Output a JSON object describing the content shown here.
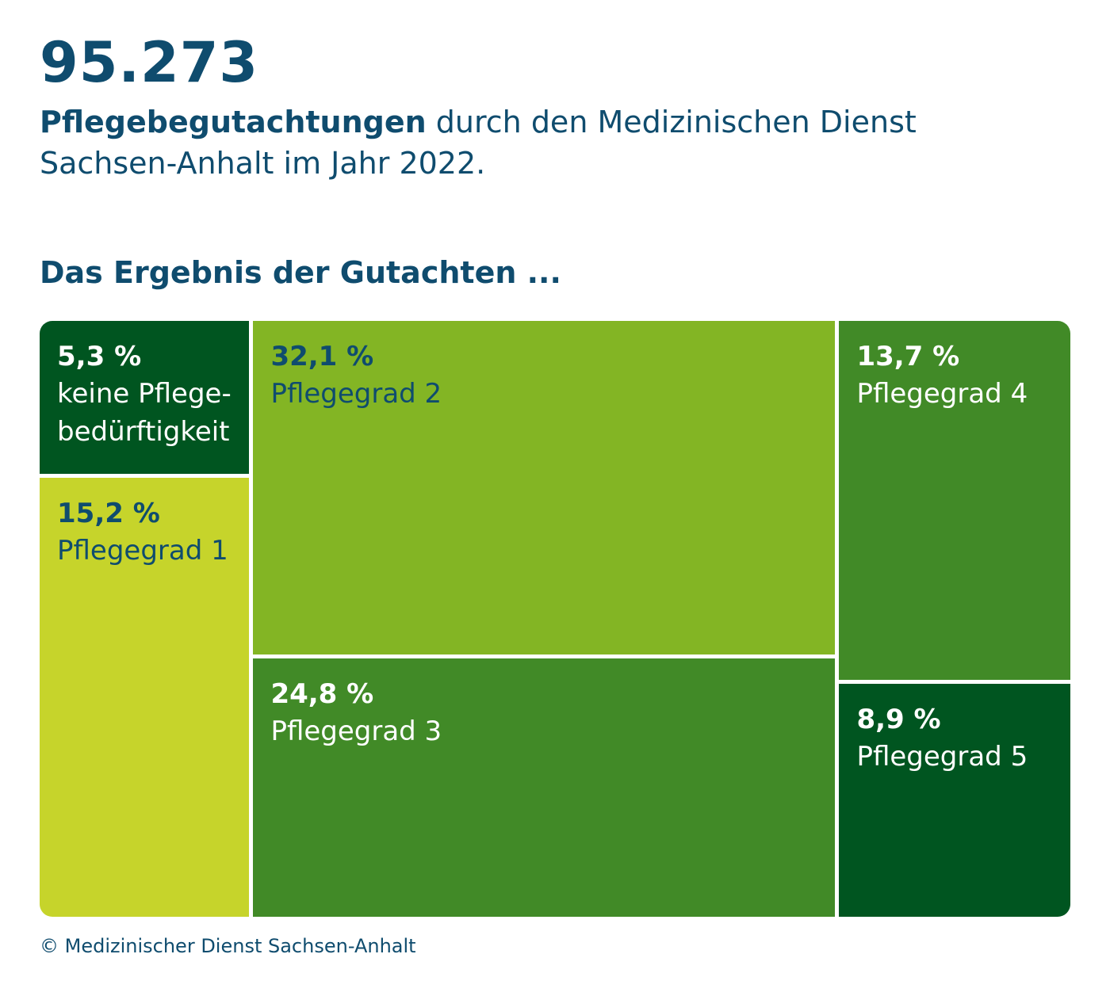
{
  "header": {
    "total": "95.273",
    "subtitle_bold": "Pflegebegutachtungen",
    "subtitle_rest": " durch den Medizinischen Dienst Sachsen-Anhalt im Jahr 2022."
  },
  "section_title": "Das Ergebnis der Gutachten ...",
  "credit": "© Medizinischer Dienst Sachsen-Anhalt",
  "colors": {
    "text": "#0f4c6e",
    "darkest_green": "#005520",
    "medium_green": "#418a27",
    "lime_green": "#83b524",
    "yellow_green": "#c6d42b"
  },
  "chart_data": {
    "type": "treemap",
    "title": "Das Ergebnis der Gutachten ...",
    "categories": [
      "keine Pflegebedürftigkeit",
      "Pflegegrad 1",
      "Pflegegrad 2",
      "Pflegegrad 3",
      "Pflegegrad 4",
      "Pflegegrad 5"
    ],
    "values": [
      5.3,
      15.2,
      32.1,
      24.8,
      13.7,
      8.9
    ],
    "unit": "%",
    "tiles": [
      {
        "pct": "5,3 %",
        "label": "keine Pflege-bedürftigkeit",
        "value": 5.3,
        "color": "#005520"
      },
      {
        "pct": "15,2 %",
        "label": "Pflegegrad 1",
        "value": 15.2,
        "color": "#c6d42b"
      },
      {
        "pct": "32,1 %",
        "label": "Pflegegrad 2",
        "value": 32.1,
        "color": "#83b524"
      },
      {
        "pct": "24,8 %",
        "label": "Pflegegrad 3",
        "value": 24.8,
        "color": "#418a27"
      },
      {
        "pct": "13,7 %",
        "label": "Pflegegrad 4",
        "value": 13.7,
        "color": "#418a27"
      },
      {
        "pct": "8,9 %",
        "label": "Pflegegrad 5",
        "value": 8.9,
        "color": "#005520"
      }
    ]
  }
}
